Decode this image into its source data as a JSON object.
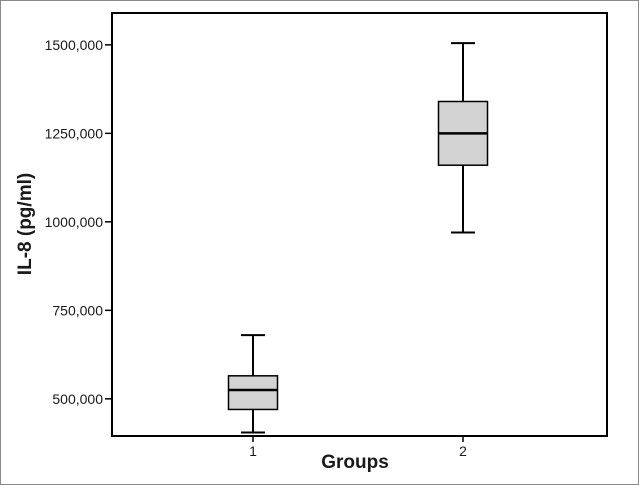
{
  "chart_data": {
    "type": "boxplot",
    "title": "",
    "xlabel": "Groups",
    "ylabel": "IL-8 (pg/ml)",
    "categories": [
      "1",
      "2"
    ],
    "ylim": [
      395000,
      1590000
    ],
    "yticks": [
      500000,
      750000,
      1000000,
      1250000,
      1500000
    ],
    "ytick_labels": [
      "500,000",
      "750,000",
      "1000,000",
      "1250,000",
      "1500,000"
    ],
    "boxes": [
      {
        "category": "1",
        "min": 405000,
        "q1": 470000,
        "median": 525000,
        "q3": 565000,
        "max": 680000
      },
      {
        "category": "2",
        "min": 970000,
        "q1": 1160000,
        "median": 1250000,
        "q3": 1340000,
        "max": 1505000
      }
    ],
    "box_fill": "#d3d3d3",
    "line_color": "#000000",
    "grid": false
  }
}
